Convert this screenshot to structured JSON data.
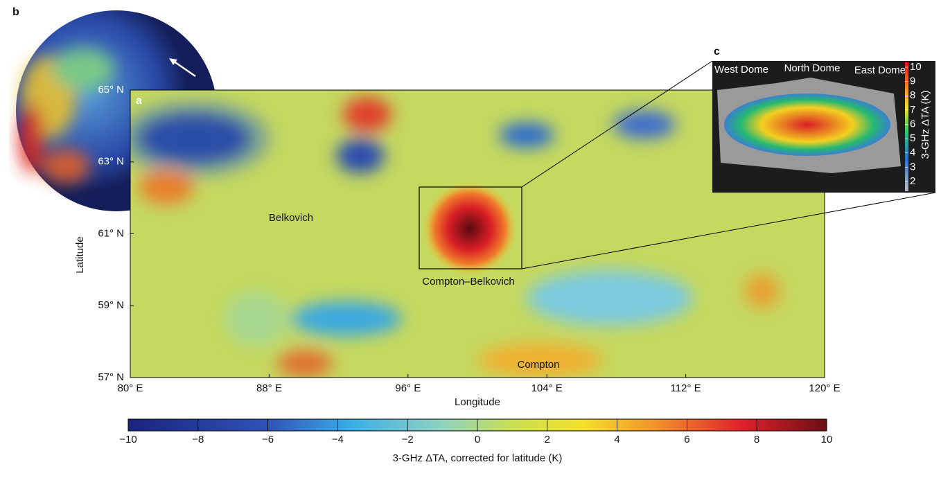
{
  "panel_a": {
    "label": "a",
    "xlabel": "Longitude",
    "ylabel": "Latitude",
    "xlim": [
      80,
      120
    ],
    "ylim": [
      57,
      65
    ],
    "xticks": [
      {
        "value": 80,
        "label": "80° E"
      },
      {
        "value": 88,
        "label": "88° E"
      },
      {
        "value": 96,
        "label": "96° E"
      },
      {
        "value": 104,
        "label": "104° E"
      },
      {
        "value": 112,
        "label": "112° E"
      },
      {
        "value": 120,
        "label": "120° E"
      }
    ],
    "yticks": [
      {
        "value": 57,
        "label": "57° N"
      },
      {
        "value": 59,
        "label": "59° N"
      },
      {
        "value": 61,
        "label": "61° N"
      },
      {
        "value": 63,
        "label": "63° N"
      },
      {
        "value": 65,
        "label": "65° N"
      }
    ],
    "annotations": [
      "Belkovich",
      "Compton–Belkovich",
      "Compton"
    ]
  },
  "colorbar": {
    "label": "3-GHz ΔTA, corrected for latitude (K)",
    "lim": [
      -10,
      10
    ],
    "ticks": [
      {
        "value": -10,
        "label": "−10"
      },
      {
        "value": -8,
        "label": "−8"
      },
      {
        "value": -6,
        "label": "−6"
      },
      {
        "value": -4,
        "label": "−4"
      },
      {
        "value": -2,
        "label": "−2"
      },
      0,
      2,
      4,
      6,
      8,
      10
    ]
  },
  "panel_b": {
    "label": "b"
  },
  "panel_c": {
    "label": "c",
    "annotations": [
      "West Dome",
      "North Dome",
      "East Dome"
    ],
    "colorbar": {
      "label": "3-GHz ΔTA (K)",
      "lim": [
        2,
        10
      ],
      "ticks": [
        2,
        3,
        4,
        5,
        6,
        7,
        8,
        9,
        10
      ]
    }
  }
}
